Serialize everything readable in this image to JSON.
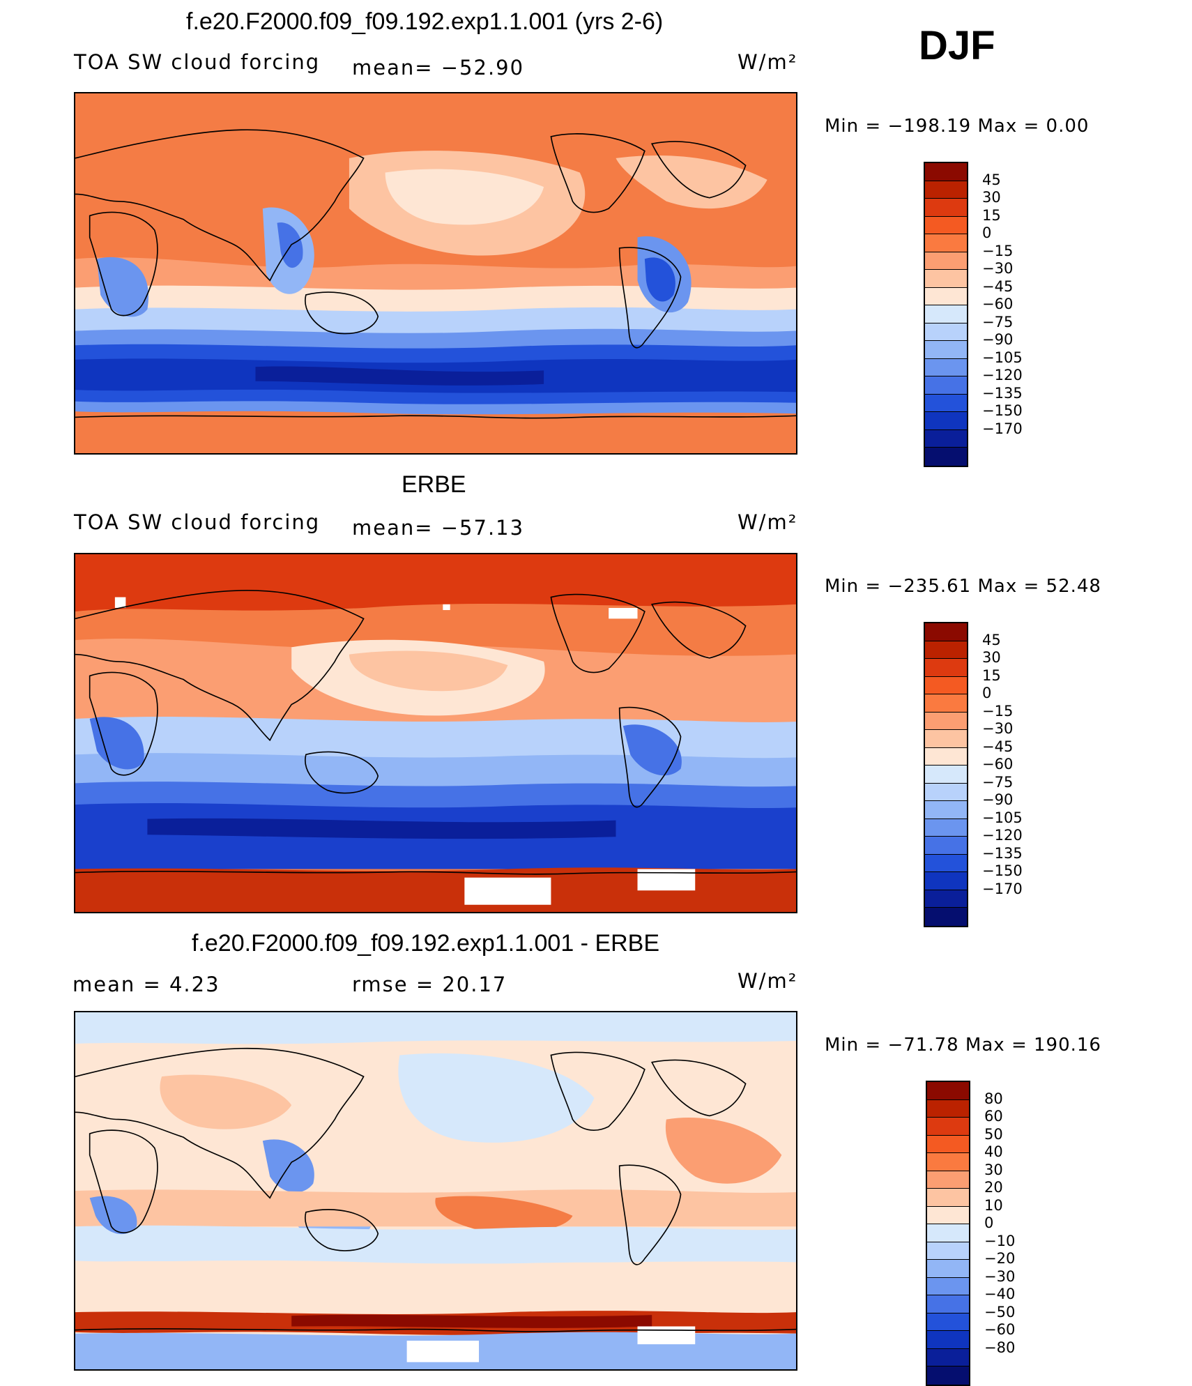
{
  "season": "DJF",
  "panels": [
    {
      "title": "f.e20.F2000.f09_f09.192.exp1.1.001 (yrs 2-6)",
      "left_label": "TOA SW cloud forcing",
      "mid_label": "mean= −52.90",
      "units": "W/m²",
      "minmax": "Min = −198.19 Max =   0.00",
      "colorbar": {
        "colors": [
          "#8b0a00",
          "#bb2200",
          "#dd3a10",
          "#f45a22",
          "#fa7a40",
          "#fb9e72",
          "#fdc4a2",
          "#fee6d4",
          "#d6e8fb",
          "#b8d2fb",
          "#92b6f6",
          "#6b95ef",
          "#4672e6",
          "#2352da",
          "#0f35bf",
          "#0a1f9a",
          "#050e6f"
        ],
        "labels": [
          "45",
          "30",
          "15",
          "0",
          "−15",
          "−30",
          "−45",
          "−60",
          "−75",
          "−90",
          "−105",
          "−120",
          "−135",
          "−150",
          "−170"
        ]
      }
    },
    {
      "title": "ERBE",
      "left_label": "TOA SW cloud forcing",
      "mid_label": "mean= −57.13",
      "units": "W/m²",
      "minmax": "Min = −235.61 Max =  52.48",
      "colorbar": {
        "colors": [
          "#8b0a00",
          "#bb2200",
          "#dd3a10",
          "#f45a22",
          "#fa7a40",
          "#fb9e72",
          "#fdc4a2",
          "#fee6d4",
          "#d6e8fb",
          "#b8d2fb",
          "#92b6f6",
          "#6b95ef",
          "#4672e6",
          "#2352da",
          "#0f35bf",
          "#0a1f9a",
          "#050e6f"
        ],
        "labels": [
          "45",
          "30",
          "15",
          "0",
          "−15",
          "−30",
          "−45",
          "−60",
          "−75",
          "−90",
          "−105",
          "−120",
          "−135",
          "−150",
          "−170"
        ]
      }
    },
    {
      "title": "f.e20.F2000.f09_f09.192.exp1.1.001 - ERBE",
      "left_label": "mean =    4.23",
      "mid_label": "rmse =   20.17",
      "units": "W/m²",
      "minmax": "Min = −71.78 Max = 190.16",
      "colorbar": {
        "colors": [
          "#8b0a00",
          "#bb2200",
          "#dd3a10",
          "#f45a22",
          "#fa7a40",
          "#fb9e72",
          "#fdc4a2",
          "#fee6d4",
          "#d6e8fb",
          "#b8d2fb",
          "#92b6f6",
          "#6b95ef",
          "#4672e6",
          "#2352da",
          "#0f35bf",
          "#0a1f9a",
          "#050e6f"
        ],
        "labels": [
          "80",
          "60",
          "50",
          "40",
          "30",
          "20",
          "10",
          "0",
          "−10",
          "−20",
          "−30",
          "−40",
          "−50",
          "−60",
          "−80"
        ]
      }
    }
  ]
}
